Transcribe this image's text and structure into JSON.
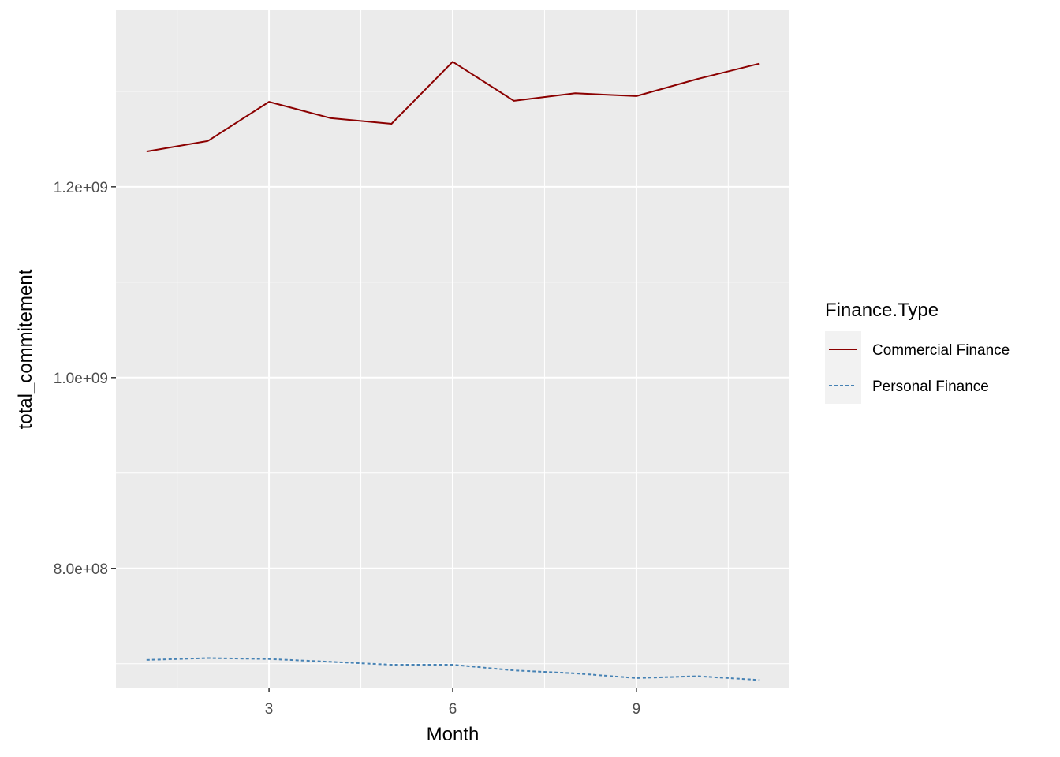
{
  "chart_data": {
    "type": "line",
    "xlabel": "Month",
    "ylabel": "total_commitement",
    "xlim": [
      0.5,
      11.5
    ],
    "ylim": [
      675000000,
      1385000000
    ],
    "x_ticks": [
      3,
      6,
      9
    ],
    "x_tick_labels": [
      "3",
      "6",
      "9"
    ],
    "x_minor_ticks": [
      1.5,
      4.5,
      7.5,
      10.5
    ],
    "y_ticks": [
      800000000,
      1000000000,
      1200000000
    ],
    "y_tick_labels": [
      "8.0e+08",
      "1.0e+09",
      "1.2e+09"
    ],
    "y_minor_ticks": [
      700000000,
      900000000,
      1100000000,
      1300000000
    ],
    "grid": true,
    "panel_background": "#ebebeb",
    "legend": {
      "title": "Finance.Type",
      "placement": "right"
    },
    "x": [
      1,
      2,
      3,
      4,
      5,
      6,
      7,
      8,
      9,
      10,
      11
    ],
    "series": [
      {
        "name": "Commercial Finance",
        "color": "#8b0000",
        "dash": "solid",
        "values": [
          1237000000,
          1248000000,
          1289000000,
          1272000000,
          1266000000,
          1331000000,
          1290000000,
          1298000000,
          1295000000,
          1313000000,
          1329000000
        ]
      },
      {
        "name": "Personal Finance",
        "color": "#4682b4",
        "dash": "dashed",
        "values": [
          704000000,
          706000000,
          705000000,
          702000000,
          699000000,
          699000000,
          693000000,
          690000000,
          685000000,
          687000000,
          683000000
        ]
      }
    ]
  }
}
